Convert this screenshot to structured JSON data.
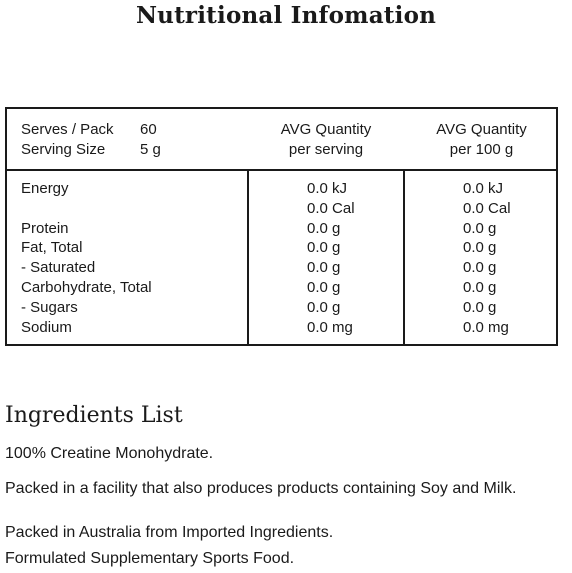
{
  "title": "Nutritional Infomation",
  "table": {
    "serves_label": "Serves / Pack",
    "serves_value": "60",
    "serving_size_label": "Serving Size",
    "serving_size_value": "5 g",
    "col2_header_1": "AVG Quantity",
    "col2_header_2": "per serving",
    "col3_header_1": "AVG Quantity",
    "col3_header_2": "per 100 g",
    "rows": [
      {
        "name": "Energy",
        "per_serving": "0.0 kJ",
        "per_100g": "0.0 kJ"
      },
      {
        "name": "",
        "per_serving": "0.0 Cal",
        "per_100g": "0.0 Cal"
      },
      {
        "name": "Protein",
        "per_serving": "0.0 g",
        "per_100g": "0.0 g"
      },
      {
        "name": "Fat, Total",
        "per_serving": "0.0 g",
        "per_100g": "0.0 g"
      },
      {
        "name": "- Saturated",
        "per_serving": "0.0 g",
        "per_100g": "0.0 g"
      },
      {
        "name": "Carbohydrate, Total",
        "per_serving": "0.0 g",
        "per_100g": "0.0 g"
      },
      {
        "name": "- Sugars",
        "per_serving": "0.0 g",
        "per_100g": "0.0 g"
      },
      {
        "name": "Sodium",
        "per_serving": "0.0 mg",
        "per_100g": "0.0 mg"
      }
    ]
  },
  "ingredients": {
    "title": "Ingredients List",
    "lines": [
      "100% Creatine Monohydrate.",
      "Packed in a facility that also produces products containing Soy and Milk.",
      "Packed in Australia from Imported Ingredients.",
      "Formulated Supplementary Sports Food."
    ]
  }
}
